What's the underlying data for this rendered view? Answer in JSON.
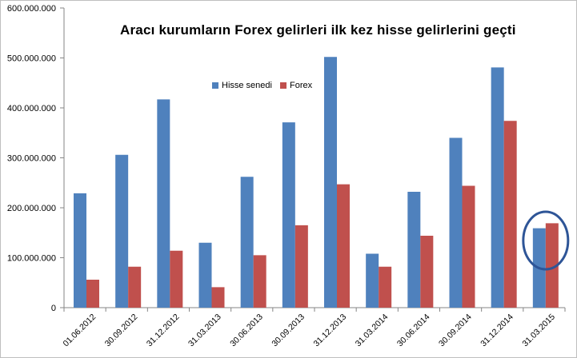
{
  "chart_data": {
    "type": "bar",
    "title": "Aracı kurumların  Forex gelirleri ilk kez hisse gelirlerini geçti",
    "xlabel": "",
    "ylabel": "",
    "ylim": [
      0,
      600000000
    ],
    "y_ticks": [
      0,
      100000000,
      200000000,
      300000000,
      400000000,
      500000000,
      600000000
    ],
    "y_tick_labels": [
      "0",
      "100.000.000",
      "200.000.000",
      "300.000.000",
      "400.000.000",
      "500.000.000",
      "600.000.000"
    ],
    "grid": false,
    "legend_position": "top-center",
    "categories": [
      "01.06.2012",
      "30.09.2012",
      "31.12.2012",
      "31.03.2013",
      "30.06.2013",
      "30.09.2013",
      "31.12.2013",
      "31.03.2014",
      "30.06.2014",
      "30.09.2014",
      "31.12.2014",
      "31.03.2015"
    ],
    "series": [
      {
        "name": "Hisse senedi",
        "color": "#4F81BD",
        "values": [
          229000000,
          306000000,
          417000000,
          130000000,
          262000000,
          371000000,
          502000000,
          108000000,
          232000000,
          340000000,
          481000000,
          159000000
        ]
      },
      {
        "name": "Forex",
        "color": "#C0504D",
        "values": [
          56000000,
          82000000,
          114000000,
          41000000,
          105000000,
          165000000,
          247000000,
          82000000,
          144000000,
          244000000,
          374000000,
          169000000
        ]
      }
    ],
    "annotation": {
      "type": "ellipse",
      "target_category": "31.03.2015",
      "color": "#2E5597"
    }
  }
}
